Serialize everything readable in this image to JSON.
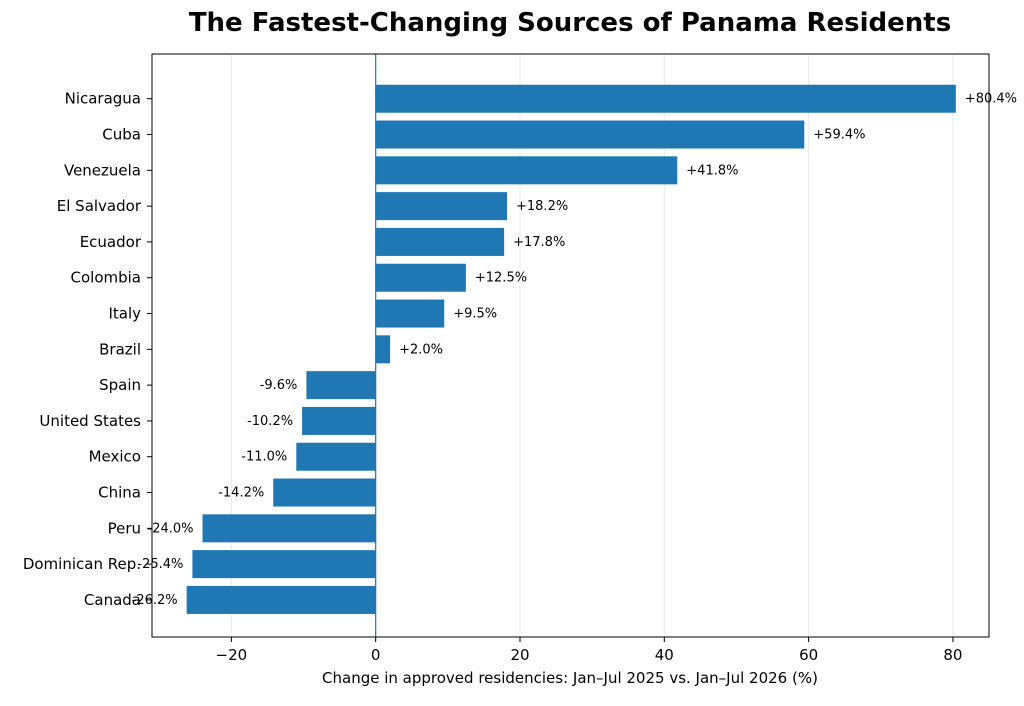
{
  "chart_data": {
    "type": "bar",
    "orientation": "horizontal",
    "title": "The Fastest-Changing Sources of Panama Residents",
    "xlabel": "Change in approved residencies: Jan–Jul 2025 vs. Jan–Jul 2026 (%)",
    "ylabel": "",
    "xlim": [
      -31,
      85
    ],
    "xticks": [
      -20,
      0,
      20,
      40,
      60,
      80
    ],
    "xtick_labels": [
      "−20",
      "0",
      "20",
      "40",
      "60",
      "80"
    ],
    "grid": "x",
    "bar_color": "#1f77b4",
    "categories": [
      "Nicaragua",
      "Cuba",
      "Venezuela",
      "El Salvador",
      "Ecuador",
      "Colombia",
      "Italy",
      "Brazil",
      "Spain",
      "United States",
      "Mexico",
      "China",
      "Peru",
      "Dominican Rep.",
      "Canada"
    ],
    "values": [
      80.4,
      59.4,
      41.8,
      18.2,
      17.8,
      12.5,
      9.5,
      2.0,
      -9.6,
      -10.2,
      -11.0,
      -14.2,
      -24.0,
      -25.4,
      -26.2
    ],
    "value_labels": [
      "+80.4%",
      "+59.4%",
      "+41.8%",
      "+18.2%",
      "+17.8%",
      "+12.5%",
      "+9.5%",
      "+2.0%",
      "-9.6%",
      "-10.2%",
      "-11.0%",
      "-14.2%",
      "-24.0%",
      "-25.4%",
      "-26.2%"
    ]
  }
}
